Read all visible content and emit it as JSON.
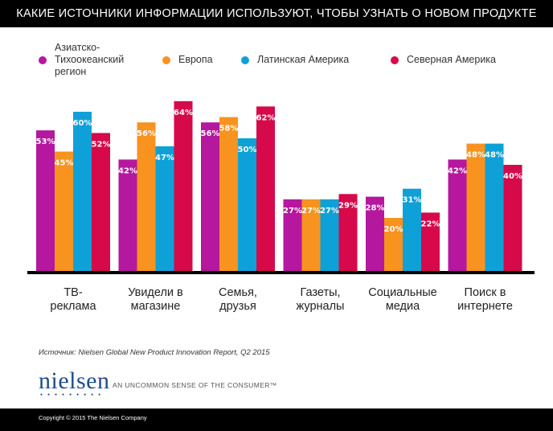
{
  "header": {
    "title": "КАКИЕ ИСТОЧНИКИ ИНФОРМАЦИИ ИСПОЛЬЗУЮТ, ЧТОБЫ УЗНАТЬ О НОВОМ ПРОДУКТЕ"
  },
  "colors": {
    "asia": "#b5179e",
    "europe": "#f7931e",
    "latam": "#0ea1d8",
    "namerica": "#d6094a"
  },
  "chart_data": {
    "type": "bar",
    "title": "КАКИЕ ИСТОЧНИКИ ИНФОРМАЦИИ ИСПОЛЬЗУЮТ, ЧТОБЫ УЗНАТЬ О НОВОМ ПРОДУКТЕ",
    "categories": [
      "ТВ-\nреклама",
      "Увидели в\nмагазине",
      "Семья,\nдрузья",
      "Газеты,\nжурналы",
      "Социальные\nмедиа",
      "Поиск в\nинтернете"
    ],
    "series": [
      {
        "name": "Азиатско-\nТихоокеанский\nрегион",
        "color": "#b5179e",
        "values": [
          53,
          42,
          56,
          27,
          28,
          42
        ]
      },
      {
        "name": "Европа",
        "color": "#f7931e",
        "values": [
          45,
          56,
          58,
          27,
          20,
          48
        ]
      },
      {
        "name": "Латинская Америка",
        "color": "#0ea1d8",
        "values": [
          60,
          47,
          50,
          27,
          31,
          48
        ]
      },
      {
        "name": "Северная Америка",
        "color": "#d6094a",
        "values": [
          52,
          64,
          62,
          29,
          22,
          40
        ]
      }
    ],
    "value_suffix": "%",
    "ylim": [
      0,
      100
    ],
    "grid": false,
    "legend": "top"
  },
  "footer": {
    "source": "Источник: Nielsen Global New Product Innovation Report, Q2 2015",
    "logo": "nielsen",
    "tagline": "AN UNCOMMON SENSE OF THE CONSUMER™",
    "copyright": "Copyright © 2015 The Nielsen Company"
  }
}
